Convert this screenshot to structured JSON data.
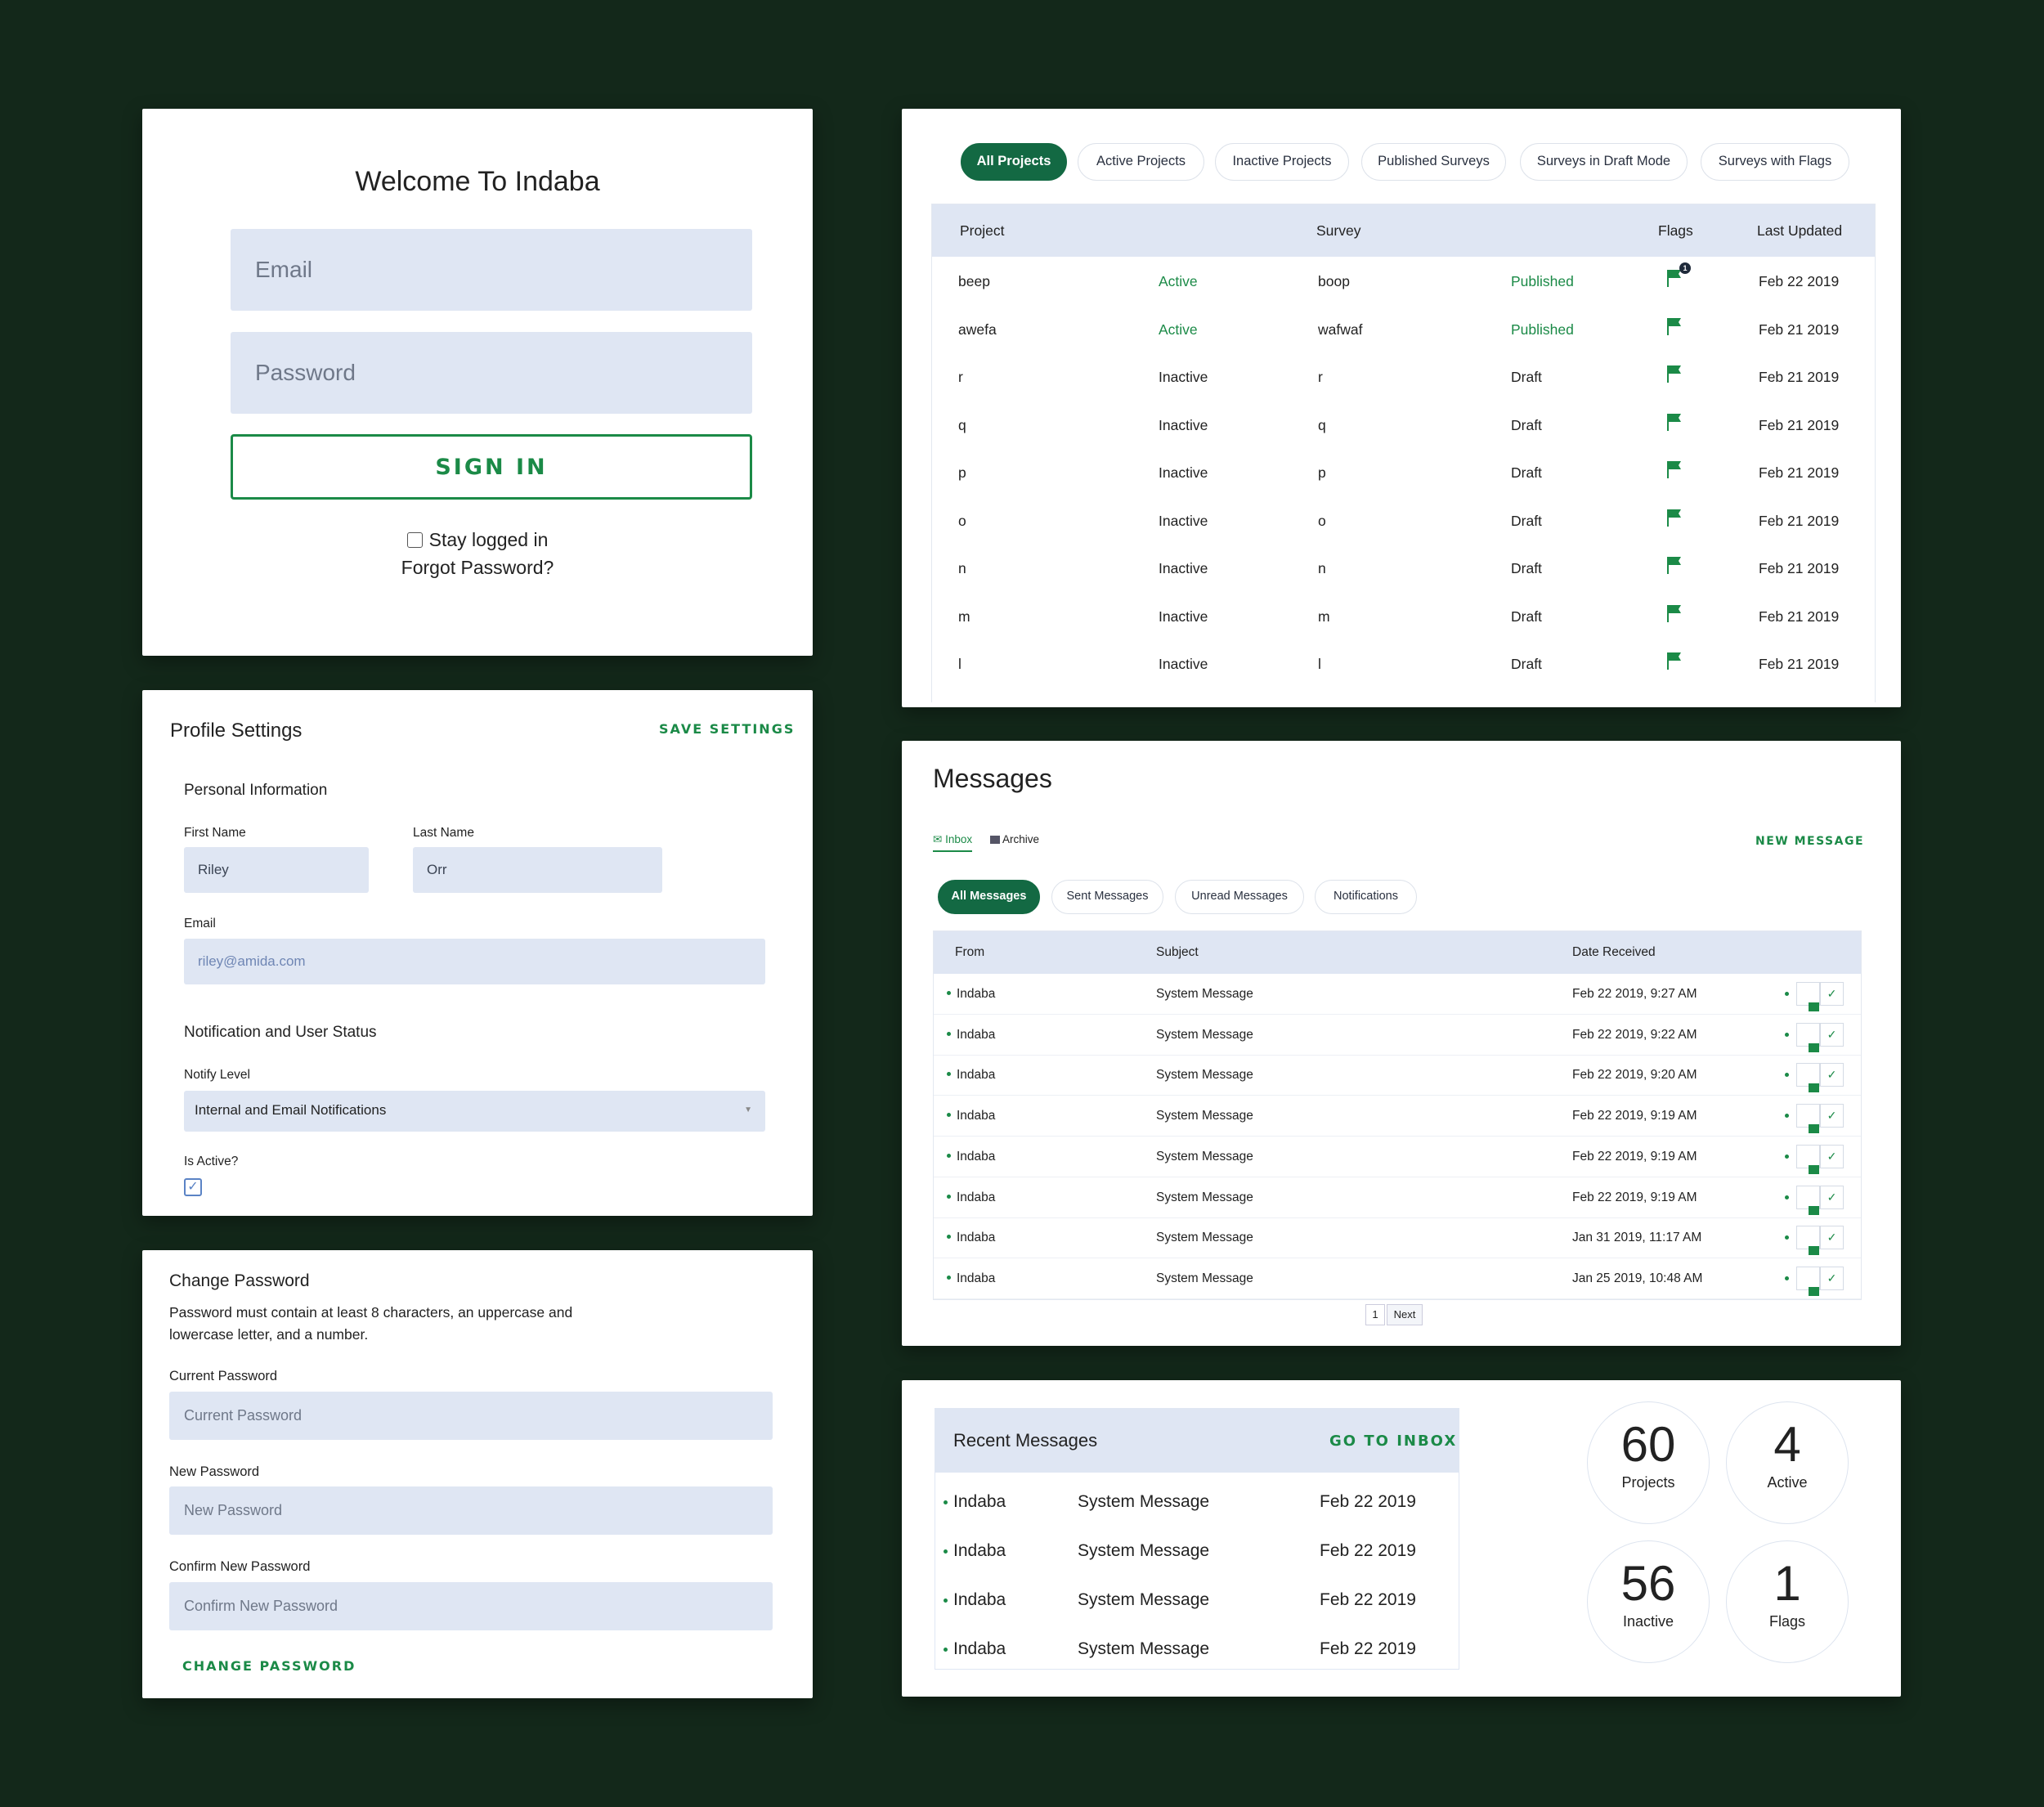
{
  "login": {
    "title": "Welcome To Indaba",
    "email_placeholder": "Email",
    "password_placeholder": "Password",
    "signin_label": "SIGN IN",
    "stay_logged_in": "Stay logged in",
    "forgot": "Forgot Password?"
  },
  "profile": {
    "title": "Profile Settings",
    "save_label": "SAVE SETTINGS",
    "personal_heading": "Personal Information",
    "first_name_label": "First Name",
    "first_name_value": "Riley",
    "last_name_label": "Last Name",
    "last_name_value": "Orr",
    "email_label": "Email",
    "email_value": "riley@amida.com",
    "notif_heading": "Notification and User Status",
    "notify_label": "Notify Level",
    "notify_value": "Internal and Email Notifications",
    "active_label": "Is Active?",
    "active_checked": true
  },
  "password": {
    "title": "Change Password",
    "hint": "Password must contain at least 8 characters, an uppercase and lowercase letter, and a number.",
    "current_label": "Current Password",
    "current_placeholder": "Current Password",
    "new_label": "New Password",
    "new_placeholder": "New Password",
    "confirm_label": "Confirm New Password",
    "confirm_placeholder": "Confirm New Password",
    "change_label": "CHANGE PASSWORD"
  },
  "projects": {
    "tabs": [
      "All Projects",
      "Active Projects",
      "Inactive Projects",
      "Published Surveys",
      "Surveys in Draft Mode",
      "Surveys with Flags"
    ],
    "active_tab": 0,
    "columns": {
      "project": "Project",
      "survey": "Survey",
      "flags": "Flags",
      "updated": "Last Updated"
    },
    "flag_badge": "1",
    "rows": [
      {
        "project": "beep",
        "status": "Active",
        "survey": "boop",
        "survey_status": "Published",
        "updated": "Feb 22 2019"
      },
      {
        "project": "awefa",
        "status": "Active",
        "survey": "wafwaf",
        "survey_status": "Published",
        "updated": "Feb 21 2019"
      },
      {
        "project": "r",
        "status": "Inactive",
        "survey": "r",
        "survey_status": "Draft",
        "updated": "Feb 21 2019"
      },
      {
        "project": "q",
        "status": "Inactive",
        "survey": "q",
        "survey_status": "Draft",
        "updated": "Feb 21 2019"
      },
      {
        "project": "p",
        "status": "Inactive",
        "survey": "p",
        "survey_status": "Draft",
        "updated": "Feb 21 2019"
      },
      {
        "project": "o",
        "status": "Inactive",
        "survey": "o",
        "survey_status": "Draft",
        "updated": "Feb 21 2019"
      },
      {
        "project": "n",
        "status": "Inactive",
        "survey": "n",
        "survey_status": "Draft",
        "updated": "Feb 21 2019"
      },
      {
        "project": "m",
        "status": "Inactive",
        "survey": "m",
        "survey_status": "Draft",
        "updated": "Feb 21 2019"
      },
      {
        "project": "l",
        "status": "Inactive",
        "survey": "l",
        "survey_status": "Draft",
        "updated": "Feb 21 2019"
      }
    ]
  },
  "messages": {
    "title": "Messages",
    "inbox_label": "Inbox",
    "archive_label": "Archive",
    "new_label": "NEW MESSAGE",
    "filters": [
      "All Messages",
      "Sent Messages",
      "Unread Messages",
      "Notifications"
    ],
    "active_filter": 0,
    "columns": {
      "from": "From",
      "subject": "Subject",
      "date": "Date Received"
    },
    "rows": [
      {
        "from": "Indaba",
        "subject": "System Message",
        "date": "Feb 22 2019, 9:27 AM"
      },
      {
        "from": "Indaba",
        "subject": "System Message",
        "date": "Feb 22 2019, 9:22 AM"
      },
      {
        "from": "Indaba",
        "subject": "System Message",
        "date": "Feb 22 2019, 9:20 AM"
      },
      {
        "from": "Indaba",
        "subject": "System Message",
        "date": "Feb 22 2019, 9:19 AM"
      },
      {
        "from": "Indaba",
        "subject": "System Message",
        "date": "Feb 22 2019, 9:19 AM"
      },
      {
        "from": "Indaba",
        "subject": "System Message",
        "date": "Feb 22 2019, 9:19 AM"
      },
      {
        "from": "Indaba",
        "subject": "System Message",
        "date": "Jan 31 2019, 11:17 AM"
      },
      {
        "from": "Indaba",
        "subject": "System Message",
        "date": "Jan 25 2019, 10:48 AM"
      }
    ],
    "page": "1",
    "next_label": "Next"
  },
  "dashboard": {
    "recent_title": "Recent Messages",
    "inbox_link": "GO TO INBOX",
    "recent": [
      {
        "from": "Indaba",
        "subject": "System Message",
        "date": "Feb 22 2019"
      },
      {
        "from": "Indaba",
        "subject": "System Message",
        "date": "Feb 22 2019"
      },
      {
        "from": "Indaba",
        "subject": "System Message",
        "date": "Feb 22 2019"
      },
      {
        "from": "Indaba",
        "subject": "System Message",
        "date": "Feb 22 2019"
      }
    ],
    "stats": [
      {
        "value": "60",
        "label": "Projects"
      },
      {
        "value": "4",
        "label": "Active"
      },
      {
        "value": "56",
        "label": "Inactive"
      },
      {
        "value": "1",
        "label": "Flags"
      }
    ]
  },
  "colors": {
    "background": "#13281a",
    "accent": "#1b8a47",
    "dark_accent": "#136943",
    "field": "#dfe6f3"
  }
}
